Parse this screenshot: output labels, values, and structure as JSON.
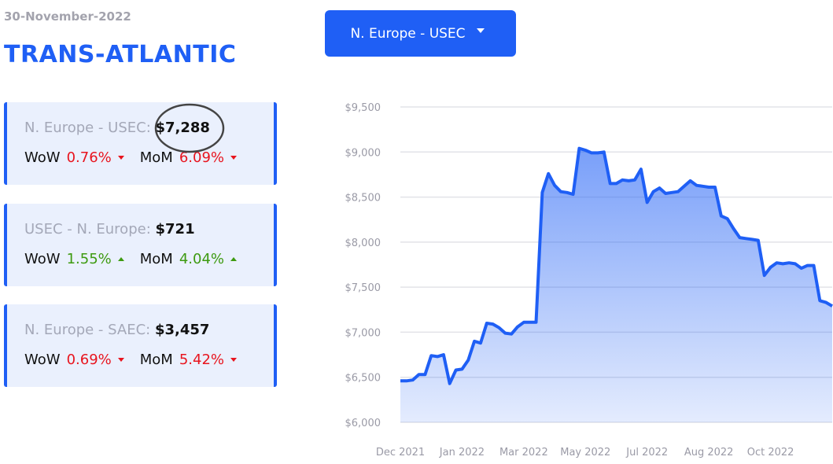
{
  "header": {
    "date": "30-November-2022",
    "title": "TRANS-ATLANTIC"
  },
  "dropdown": {
    "label": "N. Europe - USEC"
  },
  "cards": [
    {
      "route": "N. Europe - USEC:",
      "price": "$7,288",
      "wow_label": "WoW",
      "wow": "0.76%",
      "wow_trend": "down",
      "mom_label": "MoM",
      "mom": "6.09%",
      "mom_trend": "down"
    },
    {
      "route": "USEC - N. Europe:",
      "price": "$721",
      "wow_label": "WoW",
      "wow": "1.55%",
      "wow_trend": "up",
      "mom_label": "MoM",
      "mom": "4.04%",
      "mom_trend": "up"
    },
    {
      "route": "N. Europe - SAEC:",
      "price": "$3,457",
      "wow_label": "WoW",
      "wow": "0.69%",
      "wow_trend": "down",
      "mom_label": "MoM",
      "mom": "5.42%",
      "mom_trend": "down"
    }
  ],
  "chart_data": {
    "type": "area",
    "color": "#1f5ff5",
    "categories": [
      "Dec 2021",
      null,
      null,
      null,
      null,
      null,
      null,
      null,
      null,
      null,
      "Jan 2022",
      null,
      null,
      null,
      null,
      null,
      null,
      null,
      null,
      null,
      "Mar 2022",
      null,
      null,
      null,
      null,
      null,
      null,
      null,
      null,
      null,
      "May 2022",
      null,
      null,
      null,
      null,
      null,
      null,
      null,
      null,
      null,
      "Jul 2022",
      null,
      null,
      null,
      null,
      null,
      null,
      null,
      null,
      null,
      "Aug 2022",
      null,
      null,
      null,
      null,
      null,
      null,
      null,
      null,
      null,
      "Oct 2022",
      null,
      null,
      null,
      null,
      null,
      null,
      null,
      null,
      null,
      null
    ],
    "values": [
      6460,
      6460,
      6470,
      6530,
      6530,
      6740,
      6730,
      6750,
      6430,
      6580,
      6590,
      6690,
      6900,
      6880,
      7100,
      7090,
      7050,
      6990,
      6980,
      7060,
      7110,
      7110,
      7110,
      8550,
      8760,
      8630,
      8560,
      8550,
      8530,
      9040,
      9020,
      8990,
      8990,
      9000,
      8650,
      8650,
      8690,
      8680,
      8690,
      8810,
      8440,
      8560,
      8600,
      8540,
      8550,
      8560,
      8620,
      8680,
      8630,
      8620,
      8610,
      8610,
      8290,
      8260,
      8150,
      8050,
      8040,
      8030,
      8020,
      7630,
      7720,
      7770,
      7760,
      7770,
      7760,
      7710,
      7740,
      7740,
      7350,
      7330,
      7290
    ],
    "ylim": [
      6000,
      9500
    ],
    "yticks": [
      {
        "value": 6000,
        "label": "$6,000"
      },
      {
        "value": 6500,
        "label": "$6,500"
      },
      {
        "value": 7000,
        "label": "$7,000"
      },
      {
        "value": 7500,
        "label": "$7,500"
      },
      {
        "value": 8000,
        "label": "$8,000"
      },
      {
        "value": 8500,
        "label": "$8,500"
      },
      {
        "value": 9000,
        "label": "$9,000"
      },
      {
        "value": 9500,
        "label": "$9,500"
      }
    ],
    "grid": true
  }
}
